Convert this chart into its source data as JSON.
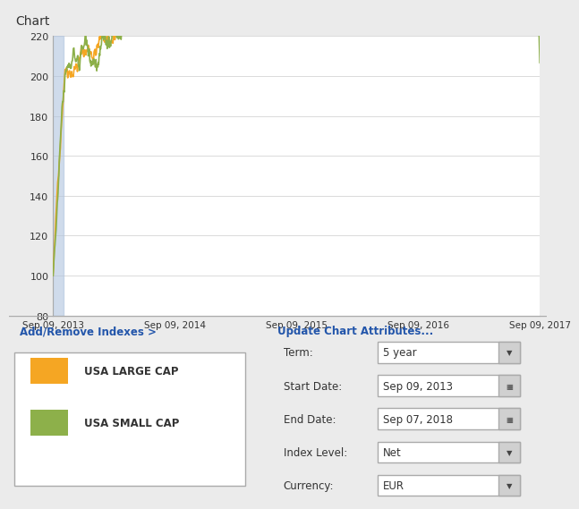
{
  "title": "Chart",
  "chart_bg": "#ffffff",
  "outer_bg": "#ebebeb",
  "header_bg": "#d8d8d8",
  "ylim": [
    80,
    220
  ],
  "yticks": [
    80,
    100,
    120,
    140,
    160,
    180,
    200,
    220
  ],
  "xtick_labels": [
    "Sep 09, 2013",
    "Sep 09, 2014",
    "Sep 09, 2015",
    "Sep 09, 2016",
    "Sep 09, 2017"
  ],
  "large_cap_color": "#f5a623",
  "small_cap_color": "#8db04a",
  "highlight_bar_color": "#b0c4de",
  "legend_large": "USA LARGE CAP",
  "legend_small": "USA SMALL CAP",
  "add_remove_text": "Add/Remove Indexes >",
  "update_text": "Update Chart Attributes...",
  "term_label": "Term:",
  "term_value": "5 year",
  "start_label": "Start Date:",
  "start_value": "Sep 09, 2013",
  "end_label": "End Date:",
  "end_value": "Sep 07, 2018",
  "index_label": "Index Level:",
  "index_value": "Net",
  "currency_label": "Currency:",
  "currency_value": "EUR"
}
